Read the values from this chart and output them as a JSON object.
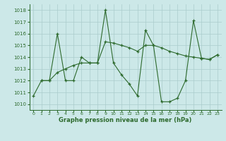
{
  "line1_x": [
    0,
    1,
    2,
    3,
    4,
    5,
    6,
    7,
    8,
    9,
    10,
    11,
    12,
    13,
    14,
    15,
    16,
    17,
    18,
    19,
    20,
    21,
    22,
    23
  ],
  "line1_y": [
    1010.7,
    1012.0,
    1012.0,
    1016.0,
    1012.0,
    1012.0,
    1014.0,
    1013.5,
    1013.5,
    1018.0,
    1013.5,
    1012.5,
    1011.7,
    1010.7,
    1016.3,
    1015.0,
    1010.2,
    1010.2,
    1010.5,
    1012.0,
    1017.1,
    1013.9,
    1013.8,
    1014.2
  ],
  "line2_x": [
    1,
    2,
    3,
    4,
    5,
    6,
    7,
    8,
    9,
    10,
    11,
    12,
    13,
    14,
    15,
    16,
    17,
    18,
    19,
    20,
    21,
    22,
    23
  ],
  "line2_y": [
    1012.0,
    1012.0,
    1012.7,
    1013.0,
    1013.3,
    1013.5,
    1013.5,
    1013.5,
    1015.3,
    1015.2,
    1015.0,
    1014.8,
    1014.5,
    1015.0,
    1015.0,
    1014.8,
    1014.5,
    1014.3,
    1014.1,
    1014.0,
    1013.9,
    1013.8,
    1014.2
  ],
  "color": "#2d6a2d",
  "bg_color": "#cce8e8",
  "grid_color": "#aacccc",
  "xlabel": "Graphe pression niveau de la mer (hPa)",
  "xlim": [
    -0.5,
    23.5
  ],
  "ylim": [
    1009.5,
    1018.5
  ],
  "yticks": [
    1010,
    1011,
    1012,
    1013,
    1014,
    1015,
    1016,
    1017,
    1018
  ],
  "xticks": [
    0,
    1,
    2,
    3,
    4,
    5,
    6,
    7,
    8,
    9,
    10,
    11,
    12,
    13,
    14,
    15,
    16,
    17,
    18,
    19,
    20,
    21,
    22,
    23
  ]
}
